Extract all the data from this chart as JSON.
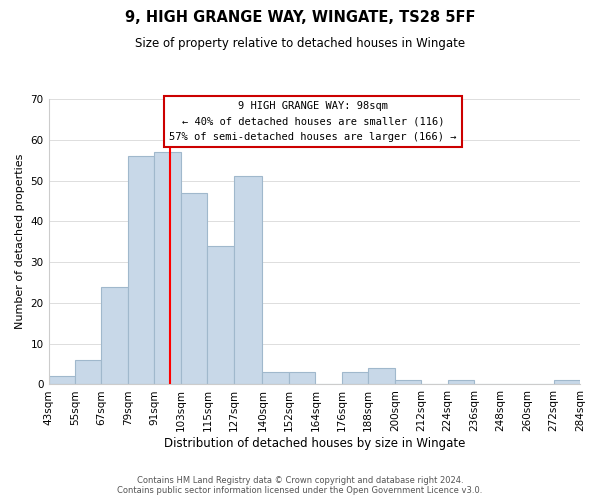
{
  "title": "9, HIGH GRANGE WAY, WINGATE, TS28 5FF",
  "subtitle": "Size of property relative to detached houses in Wingate",
  "xlabel": "Distribution of detached houses by size in Wingate",
  "ylabel": "Number of detached properties",
  "bar_color": "#c8d8e8",
  "bar_edge_color": "#a0b8cc",
  "vline_x": 98,
  "vline_color": "red",
  "bin_edges": [
    43,
    55,
    67,
    79,
    91,
    103,
    115,
    127,
    140,
    152,
    164,
    176,
    188,
    200,
    212,
    224,
    236,
    248,
    260,
    272,
    284
  ],
  "bar_heights": [
    2,
    6,
    24,
    56,
    57,
    47,
    34,
    51,
    3,
    3,
    0,
    3,
    4,
    1,
    0,
    1,
    0,
    0,
    0,
    1
  ],
  "tick_labels": [
    "43sqm",
    "55sqm",
    "67sqm",
    "79sqm",
    "91sqm",
    "103sqm",
    "115sqm",
    "127sqm",
    "140sqm",
    "152sqm",
    "164sqm",
    "176sqm",
    "188sqm",
    "200sqm",
    "212sqm",
    "224sqm",
    "236sqm",
    "248sqm",
    "260sqm",
    "272sqm",
    "284sqm"
  ],
  "ylim": [
    0,
    70
  ],
  "yticks": [
    0,
    10,
    20,
    30,
    40,
    50,
    60,
    70
  ],
  "annotation_line1": "9 HIGH GRANGE WAY: 98sqm",
  "annotation_line2": "← 40% of detached houses are smaller (116)",
  "annotation_line3": "57% of semi-detached houses are larger (166) →",
  "footer1": "Contains HM Land Registry data © Crown copyright and database right 2024.",
  "footer2": "Contains public sector information licensed under the Open Government Licence v3.0.",
  "background_color": "#ffffff",
  "grid_color": "#dddddd"
}
